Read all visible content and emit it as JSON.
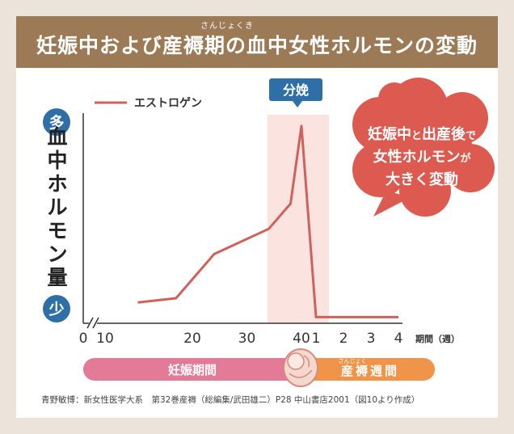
{
  "header": {
    "title": "妊娠中および産褥期の血中女性ホルモンの変動",
    "ruby": "さんじょくき"
  },
  "colors": {
    "header_bg": "#9b7a55",
    "line": "#d2605a",
    "band": "#fbe4df",
    "axis_circle": "#2e6fa8",
    "bubble": "#dc5a4f",
    "pregnancy_bar": "#e27a98",
    "postpartum_bar": "#f0944a"
  },
  "chart_data": {
    "type": "line",
    "series": [
      {
        "name": "エストロゲン",
        "points": [
          {
            "x": "10",
            "y": 8
          },
          {
            "x": "17",
            "y": 10
          },
          {
            "x": "24",
            "y": 31
          },
          {
            "x": "34",
            "y": 43
          },
          {
            "x": "38",
            "y": 55
          },
          {
            "x": "40",
            "y": 92
          },
          {
            "x": "産後1",
            "y": 1
          },
          {
            "x": "産後4",
            "y": 1
          }
        ]
      }
    ],
    "ylabel": "血中ホルモン量",
    "y_high_label": "多",
    "y_low_label": "少",
    "y_axis_unlabeled_scale": true,
    "ylim": [
      0,
      100
    ],
    "x_ticks_weeks": [
      "0",
      "10",
      "20",
      "30",
      "40"
    ],
    "x_ticks_postpartum": [
      "1",
      "2",
      "3",
      "4"
    ],
    "x_unit_label": "期間（週）",
    "highlight_label": "分娩",
    "legend_position": "top-left",
    "grid": false
  },
  "bubble_lines": [
    [
      {
        "t": "妊娠中",
        "small": false
      },
      {
        "t": "と",
        "small": true
      },
      {
        "t": "出産後",
        "small": false
      },
      {
        "t": "で",
        "small": true
      }
    ],
    [
      {
        "t": "女性ホルモン",
        "small": false
      },
      {
        "t": "が",
        "small": true
      }
    ],
    [
      {
        "t": "大きく変動",
        "small": false
      }
    ]
  ],
  "periods": {
    "pregnancy": "妊娠期間",
    "postpartum": "産褥週間",
    "postpartum_ruby": "さんじょく"
  },
  "source": "青野敏博：新女性医学大系　第32巻産褥（総編集/武田雄二）P28 中山書店2001（図10より作成）"
}
